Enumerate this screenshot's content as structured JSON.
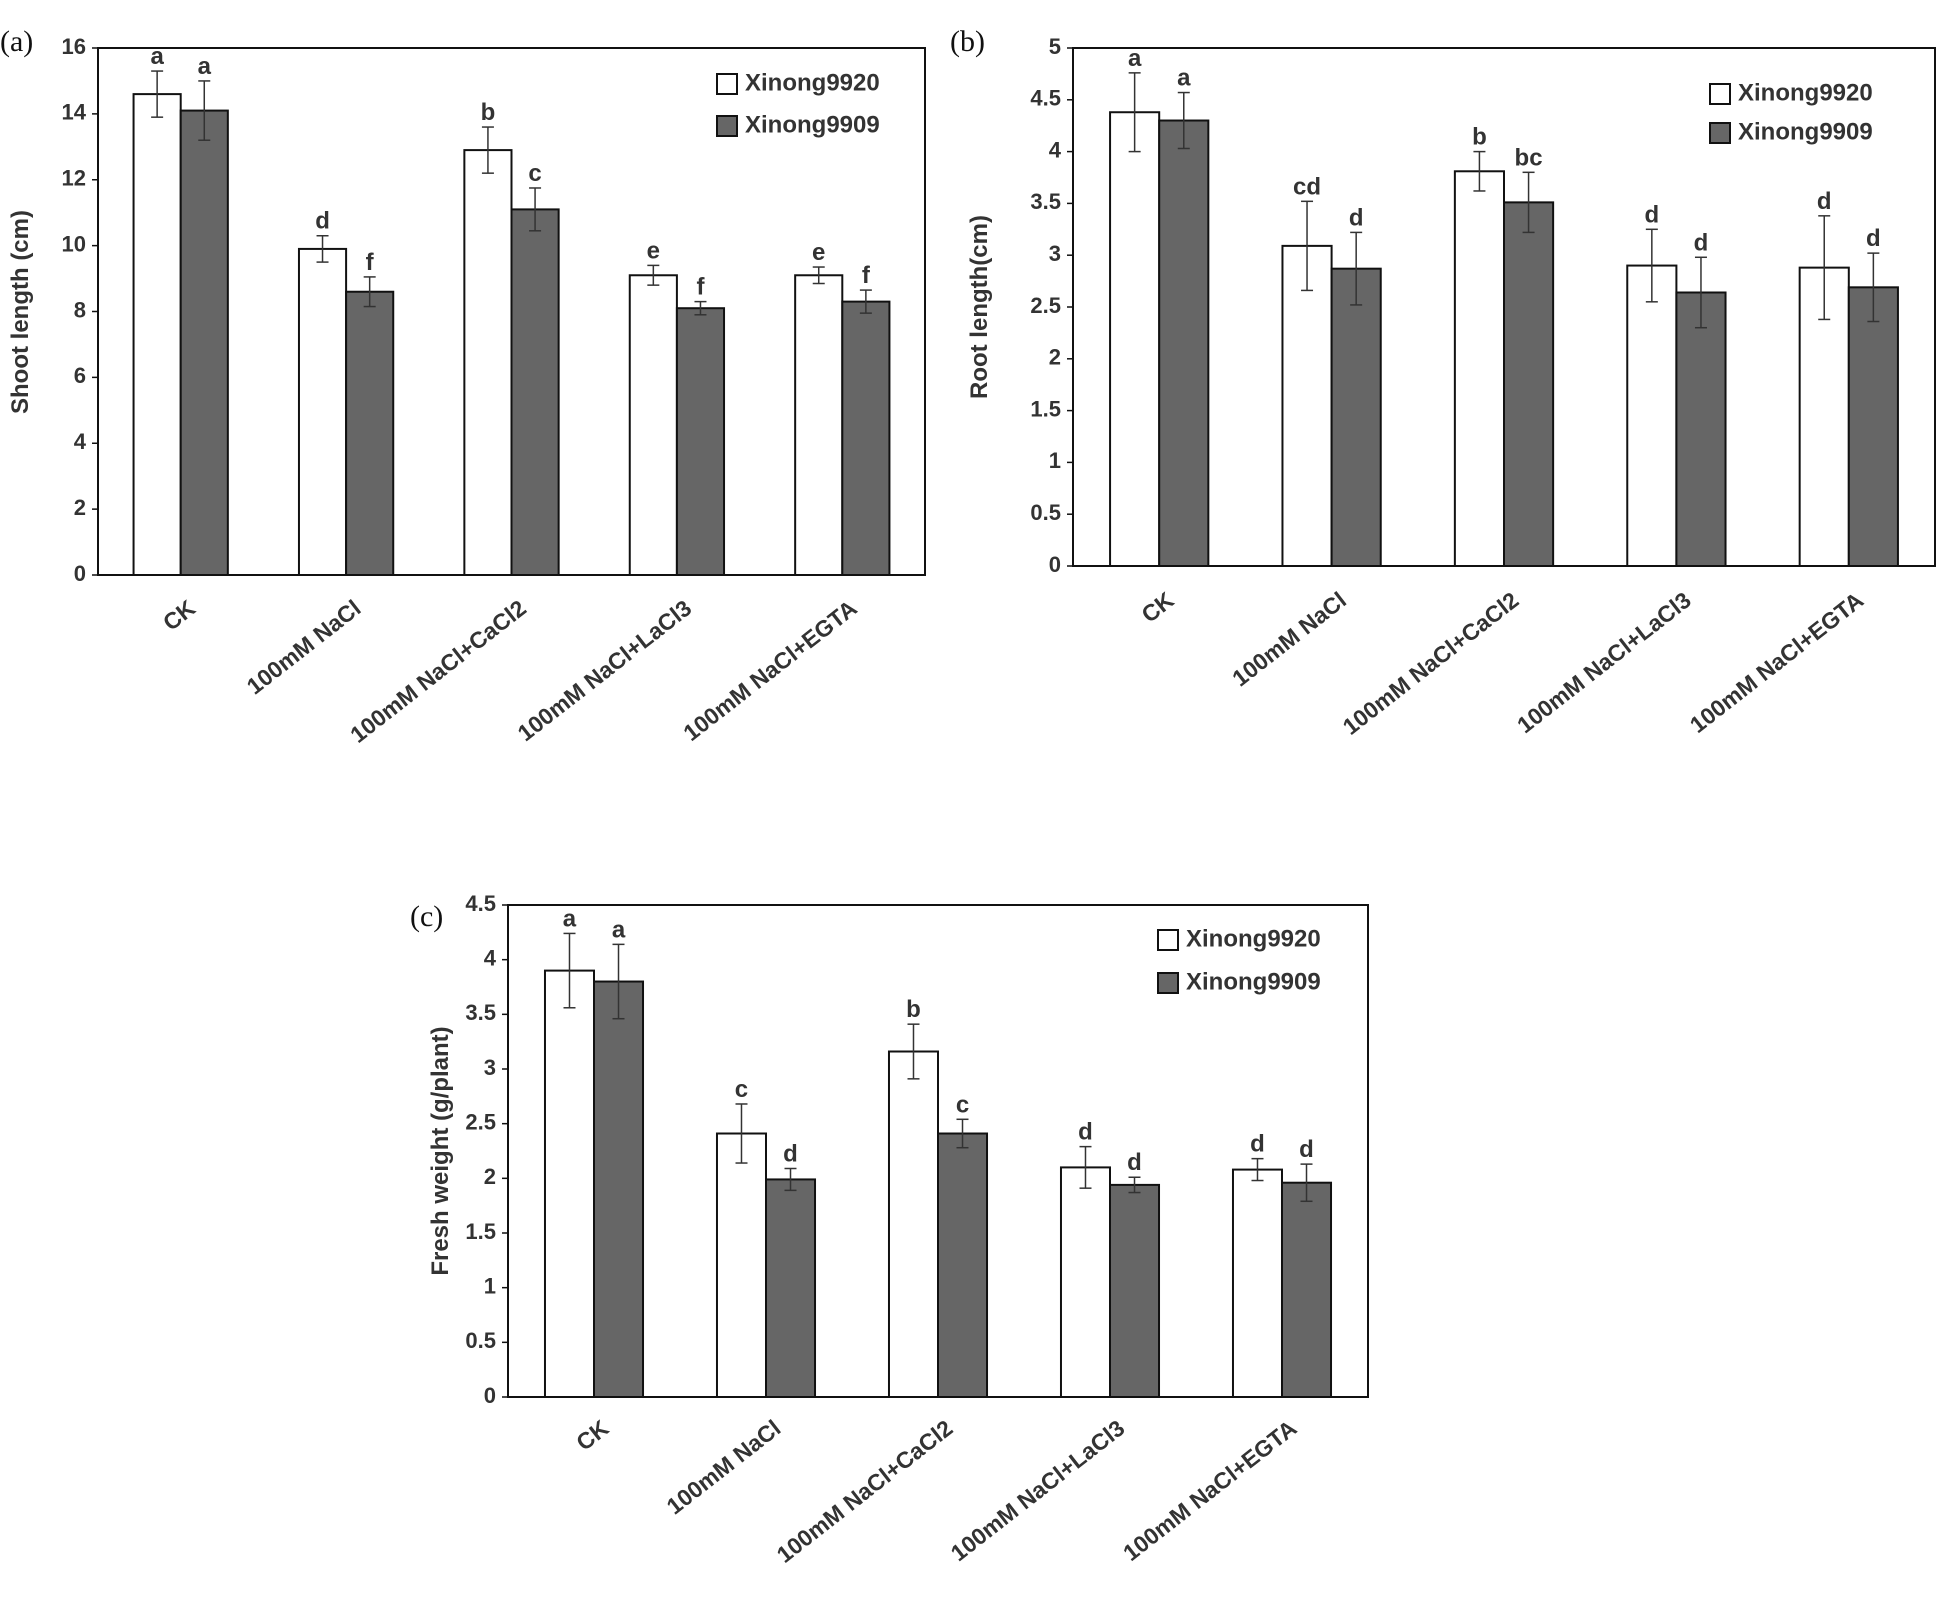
{
  "colors": {
    "series1": "#ffffff",
    "series2": "#666666",
    "stroke": "#111111",
    "text": "#333333"
  },
  "chart_data": [
    {
      "type": "bar",
      "panel_label": "(a)",
      "ylabel": "Shoot length (cm)",
      "xlabel": "",
      "ylim": [
        0,
        16
      ],
      "yticks": [
        "0",
        "2",
        "4",
        "6",
        "8",
        "10",
        "12",
        "14",
        "16"
      ],
      "categories": [
        "CK",
        "100mM NaCl",
        "100mM NaCl+CaCl2",
        "100mM NaCl+LaCl3",
        "100mM NaCl+EGTA"
      ],
      "legend_position": "top-right",
      "series": [
        {
          "name": "Xinong9920",
          "values": [
            14.6,
            9.9,
            12.9,
            9.1,
            9.1
          ],
          "errors": [
            0.7,
            0.4,
            0.7,
            0.3,
            0.25
          ],
          "letters": [
            "a",
            "d",
            "b",
            "e",
            "e"
          ]
        },
        {
          "name": "Xinong9909",
          "values": [
            14.1,
            8.6,
            11.1,
            8.1,
            8.3
          ],
          "errors": [
            0.9,
            0.45,
            0.65,
            0.2,
            0.35
          ],
          "letters": [
            "a",
            "f",
            "c",
            "f",
            "f"
          ]
        }
      ]
    },
    {
      "type": "bar",
      "panel_label": "(b)",
      "ylabel": "Root length(cm)",
      "xlabel": "",
      "ylim": [
        0,
        5
      ],
      "yticks": [
        "0",
        "0.5",
        "1",
        "1.5",
        "2",
        "2.5",
        "3",
        "3.5",
        "4",
        "4.5",
        "5"
      ],
      "categories": [
        "CK",
        "100mM NaCl",
        "100mM NaCl+CaCl2",
        "100mM NaCl+LaCl3",
        "100mM NaCl+EGTA"
      ],
      "legend_position": "top-right",
      "series": [
        {
          "name": "Xinong9920",
          "values": [
            4.38,
            3.09,
            3.81,
            2.9,
            2.88
          ],
          "errors": [
            0.38,
            0.43,
            0.19,
            0.35,
            0.5
          ],
          "letters": [
            "a",
            "cd",
            "b",
            "d",
            "d"
          ]
        },
        {
          "name": "Xinong9909",
          "values": [
            4.3,
            2.87,
            3.51,
            2.64,
            2.69
          ],
          "errors": [
            0.27,
            0.35,
            0.29,
            0.34,
            0.33
          ],
          "letters": [
            "a",
            "d",
            "bc",
            "d",
            "d"
          ]
        }
      ]
    },
    {
      "type": "bar",
      "panel_label": "(c)",
      "ylabel": "Fresh weight (g/plant)",
      "xlabel": "",
      "ylim": [
        0,
        4.5
      ],
      "yticks": [
        "0",
        "0.5",
        "1",
        "1.5",
        "2",
        "2.5",
        "3",
        "3.5",
        "4",
        "4.5"
      ],
      "categories": [
        "CK",
        "100mM NaCl",
        "100mM NaCl+CaCl2",
        "100mM NaCl+LaCl3",
        "100mM NaCl+EGTA"
      ],
      "legend_position": "top-right",
      "series": [
        {
          "name": "Xinong9920",
          "values": [
            3.9,
            2.41,
            3.16,
            2.1,
            2.08
          ],
          "errors": [
            0.34,
            0.27,
            0.25,
            0.19,
            0.1
          ],
          "letters": [
            "a",
            "c",
            "b",
            "d",
            "d"
          ]
        },
        {
          "name": "Xinong9909",
          "values": [
            3.8,
            1.99,
            2.41,
            1.94,
            1.96
          ],
          "errors": [
            0.34,
            0.1,
            0.13,
            0.07,
            0.17
          ],
          "letters": [
            "a",
            "d",
            "c",
            "d",
            "d"
          ]
        }
      ]
    }
  ]
}
